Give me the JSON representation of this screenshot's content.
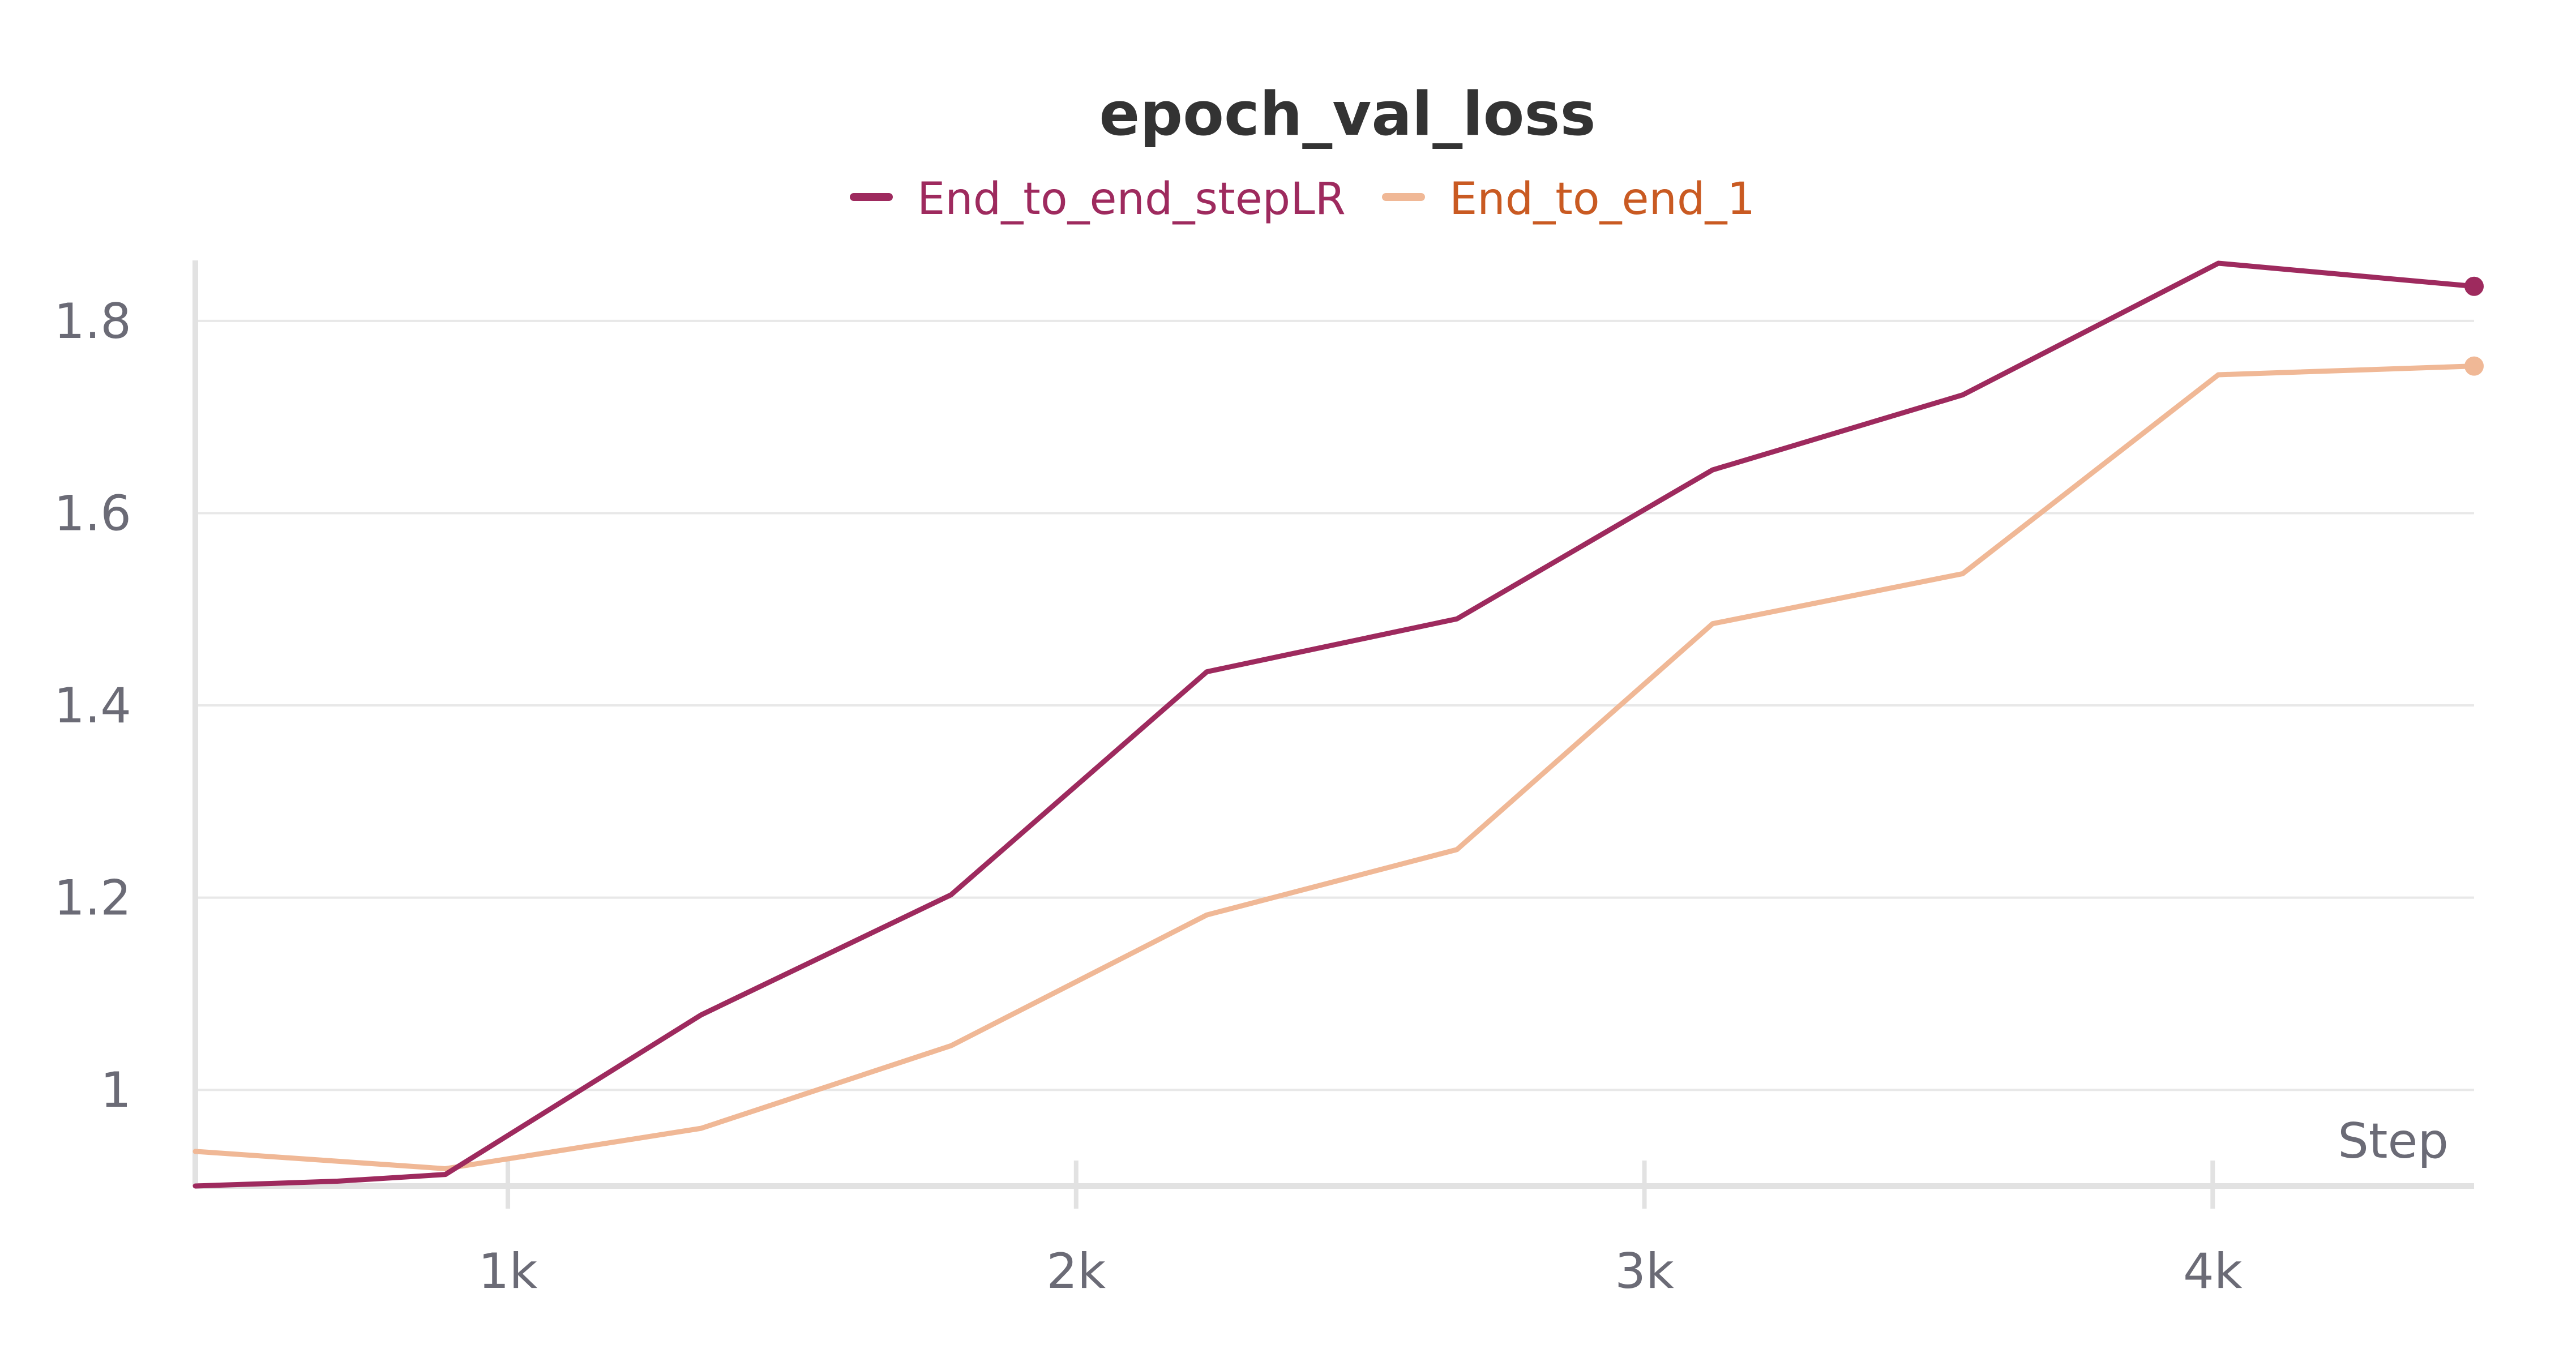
{
  "chart_data": {
    "type": "line",
    "title": "epoch_val_loss",
    "xlabel": "Step",
    "ylabel": "",
    "xlim": [
      450,
      4460
    ],
    "ylim": [
      0.9,
      1.86
    ],
    "x_ticks": [
      1000,
      2000,
      3000,
      4000
    ],
    "x_tick_labels": [
      "1k",
      "2k",
      "3k",
      "4k"
    ],
    "y_ticks": [
      1.0,
      1.2,
      1.4,
      1.6,
      1.8
    ],
    "y_tick_labels": [
      "1",
      "1.2",
      "1.4",
      "1.6",
      "1.8"
    ],
    "grid": "horizontal",
    "legend_position": "top-center",
    "series": [
      {
        "name": "End_to_end_stepLR",
        "color": "#9e2a5e",
        "label_color": "#9e2a5e",
        "x": [
          450,
          700,
          890,
          1340,
          1780,
          2230,
          2670,
          3120,
          3560,
          4010,
          4460
        ],
        "y": [
          0.9,
          0.905,
          0.912,
          1.078,
          1.203,
          1.435,
          1.49,
          1.645,
          1.723,
          1.86,
          1.836
        ]
      },
      {
        "name": "End_to_end_1",
        "color": "#f0b896",
        "label_color": "#c95a22",
        "x": [
          450,
          890,
          1340,
          1780,
          2230,
          2670,
          3120,
          3560,
          4010,
          4460
        ],
        "y": [
          0.936,
          0.918,
          0.96,
          1.046,
          1.182,
          1.25,
          1.485,
          1.537,
          1.744,
          1.753
        ]
      }
    ]
  }
}
